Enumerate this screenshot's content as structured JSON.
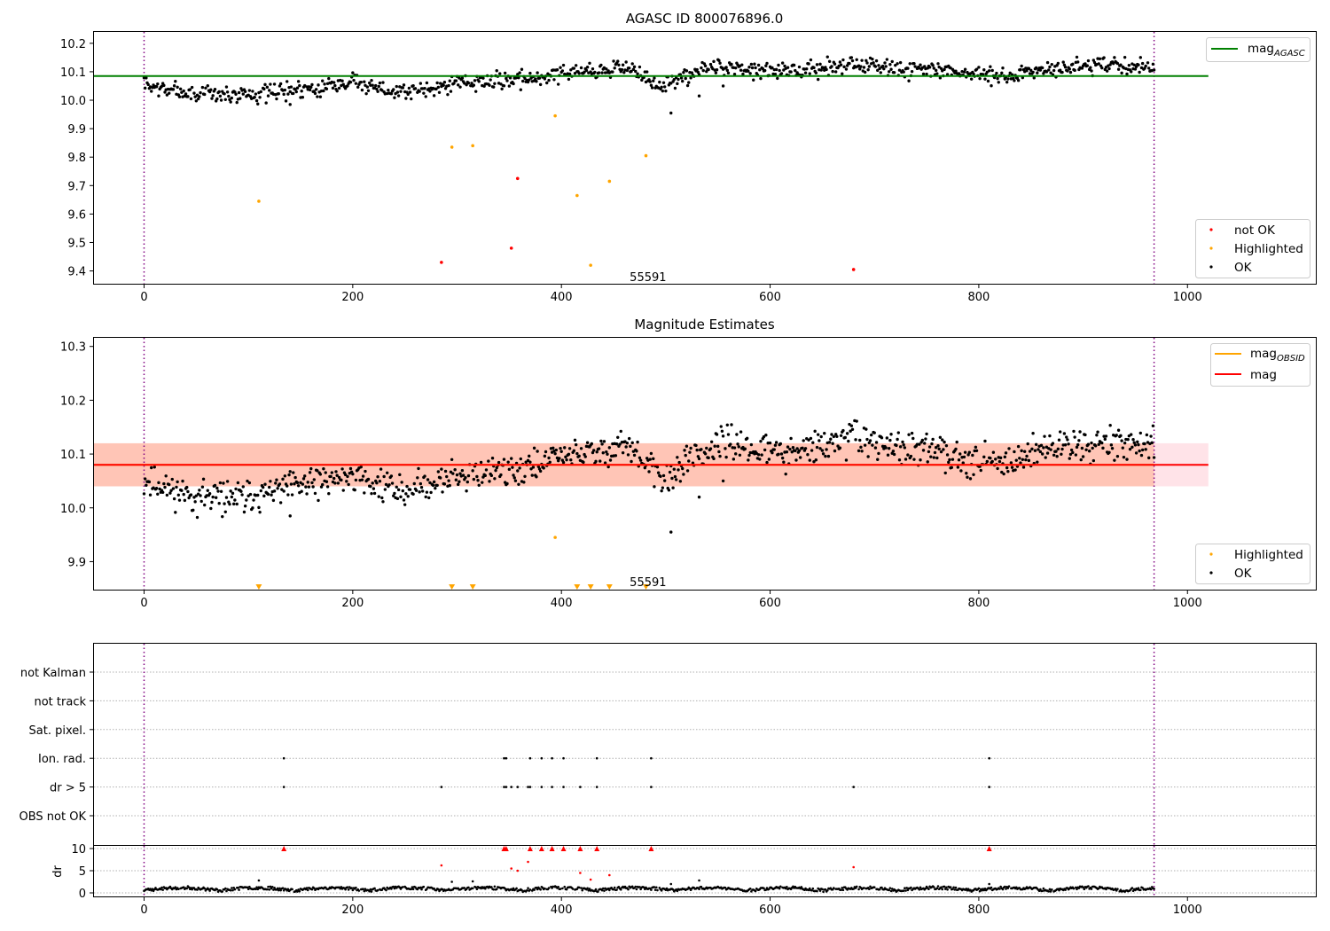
{
  "chart_data": [
    {
      "type": "scatter",
      "title": "AGASC ID 800076896.0",
      "xlim": [
        -48,
        1123
      ],
      "ylim": [
        9.355,
        10.24
      ],
      "xticks": [
        "0",
        "200",
        "400",
        "600",
        "800",
        "1000"
      ],
      "yticks": [
        "9.4",
        "9.5",
        "9.6",
        "9.7",
        "9.8",
        "9.9",
        "10.0",
        "10.1",
        "10.2"
      ],
      "vlines_x": [
        0,
        968
      ],
      "annotation": {
        "text": "55591",
        "x": 483,
        "y": 9.38
      },
      "hlines": [
        {
          "name": "mag",
          "name_sub": "AGASC",
          "y": 10.085,
          "x_range": [
            -48,
            1020
          ],
          "color": "#008000"
        }
      ],
      "series": [
        {
          "name": "not OK",
          "color": "#ff0000",
          "points": [
            [
              285,
              9.43
            ],
            [
              352,
              9.48
            ],
            [
              358,
              9.725
            ],
            [
              680,
              9.405
            ]
          ]
        },
        {
          "name": "Highlighted",
          "color": "#ffa500",
          "points": [
            [
              110,
              9.645
            ],
            [
              295,
              9.835
            ],
            [
              315,
              9.84
            ],
            [
              394,
              9.945
            ],
            [
              415,
              9.665
            ],
            [
              428,
              9.42
            ],
            [
              446,
              9.715
            ],
            [
              481,
              9.805
            ]
          ]
        },
        {
          "name": "OK",
          "color": "#000000",
          "trend": [
            [
              0,
              10.05
            ],
            [
              50,
              10.02
            ],
            [
              100,
              10.02
            ],
            [
              150,
              10.04
            ],
            [
              200,
              10.06
            ],
            [
              250,
              10.03
            ],
            [
              300,
              10.06
            ],
            [
              350,
              10.07
            ],
            [
              380,
              10.08
            ],
            [
              400,
              10.1
            ],
            [
              430,
              10.1
            ],
            [
              460,
              10.12
            ],
            [
              480,
              10.08
            ],
            [
              500,
              10.05
            ],
            [
              510,
              10.07
            ],
            [
              530,
              10.1
            ],
            [
              560,
              10.12
            ],
            [
              620,
              10.1
            ],
            [
              680,
              10.13
            ],
            [
              720,
              10.11
            ],
            [
              780,
              10.1
            ],
            [
              820,
              10.08
            ],
            [
              860,
              10.11
            ],
            [
              900,
              10.12
            ],
            [
              968,
              10.12
            ]
          ],
          "outliers": [
            [
              505,
              9.955
            ],
            [
              532,
              10.015
            ],
            [
              555,
              10.05
            ],
            [
              140,
              9.985
            ]
          ]
        }
      ]
    },
    {
      "type": "scatter",
      "title": "Magnitude Estimates",
      "xlim": [
        -48,
        1123
      ],
      "ylim": [
        9.848,
        10.316
      ],
      "xticks": [
        "0",
        "200",
        "400",
        "600",
        "800",
        "1000"
      ],
      "yticks": [
        "9.9",
        "10.0",
        "10.1",
        "10.2",
        "10.3"
      ],
      "vlines_x": [
        0,
        968
      ],
      "annotation": {
        "text": "55591",
        "x": 483,
        "y": 9.863
      },
      "hlines": [
        {
          "name": "mag",
          "name_sub": "OBSID",
          "y": 10.08,
          "x_range": [
            -48,
            968
          ],
          "color": "#ffa500",
          "band": [
            10.04,
            10.12
          ]
        },
        {
          "name": "mag",
          "name_sub": "",
          "y": 10.08,
          "x_range": [
            -48,
            1020
          ],
          "color": "#ff0000",
          "band": [
            10.04,
            10.12
          ]
        }
      ],
      "below_axis_x": [
        110,
        295,
        315,
        415,
        428,
        446,
        481
      ],
      "series": [
        {
          "name": "Highlighted",
          "color": "#ffa500",
          "points": [
            [
              394,
              9.945
            ]
          ]
        },
        {
          "name": "OK",
          "color": "#000000",
          "trend": [
            [
              0,
              10.05
            ],
            [
              50,
              10.02
            ],
            [
              100,
              10.02
            ],
            [
              150,
              10.04
            ],
            [
              200,
              10.06
            ],
            [
              250,
              10.03
            ],
            [
              300,
              10.06
            ],
            [
              350,
              10.07
            ],
            [
              380,
              10.08
            ],
            [
              400,
              10.1
            ],
            [
              430,
              10.1
            ],
            [
              460,
              10.12
            ],
            [
              480,
              10.08
            ],
            [
              500,
              10.05
            ],
            [
              510,
              10.07
            ],
            [
              530,
              10.1
            ],
            [
              560,
              10.12
            ],
            [
              620,
              10.1
            ],
            [
              680,
              10.13
            ],
            [
              720,
              10.11
            ],
            [
              780,
              10.1
            ],
            [
              820,
              10.08
            ],
            [
              860,
              10.11
            ],
            [
              900,
              10.12
            ],
            [
              968,
              10.12
            ]
          ],
          "outliers": [
            [
              505,
              9.955
            ],
            [
              532,
              10.02
            ],
            [
              555,
              10.05
            ],
            [
              140,
              9.985
            ]
          ]
        }
      ]
    },
    {
      "type": "scatter",
      "title": "",
      "xlim": [
        -48,
        1123
      ],
      "xticks": [
        "0",
        "200",
        "400",
        "600",
        "800",
        "1000"
      ],
      "vlines_x": [
        0,
        968
      ],
      "flags": {
        "categories": [
          "not Kalman",
          "not track",
          "Sat. pixel.",
          "Ion. rad.",
          "dr > 5",
          "OBS not OK"
        ],
        "points": {
          "Ion. rad.": [
            134,
            345,
            347,
            370,
            381,
            391,
            402,
            434,
            486,
            810
          ],
          "dr > 5": [
            134,
            285,
            345,
            347,
            352,
            358,
            368,
            370,
            381,
            391,
            402,
            418,
            434,
            486,
            680,
            810
          ]
        }
      },
      "dr": {
        "ylabel": "dr",
        "yticks": [
          "0",
          "5",
          "10"
        ],
        "ylim": [
          -0.8,
          10.6
        ],
        "clipped_markers_x": [
          134,
          345,
          347,
          370,
          381,
          391,
          402,
          418,
          434,
          486,
          810
        ],
        "red_points": [
          [
            285,
            6.2
          ],
          [
            352,
            5.5
          ],
          [
            358,
            5.0
          ],
          [
            368,
            7.0
          ],
          [
            418,
            4.5
          ],
          [
            428,
            3.0
          ],
          [
            446,
            4.0
          ],
          [
            680,
            5.8
          ]
        ],
        "black_outliers": [
          [
            110,
            2.8
          ],
          [
            295,
            2.5
          ],
          [
            315,
            2.6
          ],
          [
            394,
            1.5
          ],
          [
            505,
            2.0
          ],
          [
            532,
            2.8
          ],
          [
            810,
            2.0
          ]
        ]
      }
    }
  ]
}
